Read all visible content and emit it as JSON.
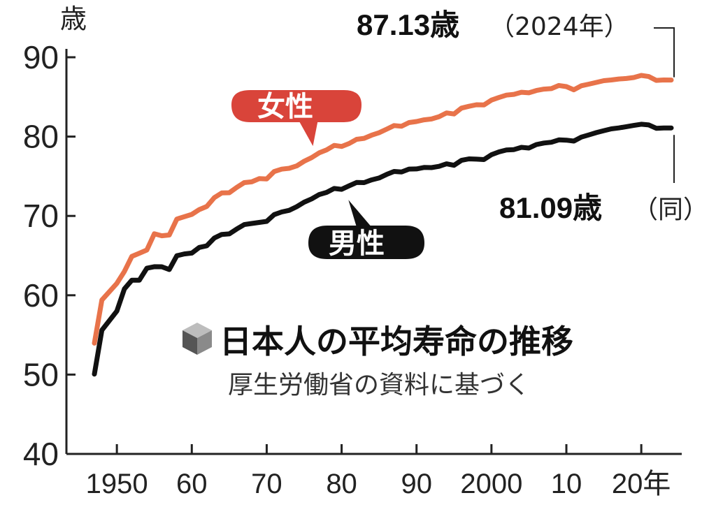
{
  "title": "日本人の平均寿命の推移",
  "subtitle": "厚生労働省の資料に基づく",
  "unit": "歳",
  "chart_data": {
    "type": "line",
    "ylim": [
      40,
      90
    ],
    "yticks": [
      "90",
      "80",
      "70",
      "60",
      "50",
      "40"
    ],
    "ytick_values": [
      90,
      80,
      70,
      60,
      50,
      40
    ],
    "xlim": [
      1945,
      2025
    ],
    "xticks": [
      {
        "year": 1950,
        "label": "1950"
      },
      {
        "year": 1960,
        "label": "60"
      },
      {
        "year": 1970,
        "label": "70"
      },
      {
        "year": 1980,
        "label": "80"
      },
      {
        "year": 1990,
        "label": "90"
      },
      {
        "year": 2000,
        "label": "2000"
      },
      {
        "year": 2010,
        "label": "10"
      },
      {
        "year": 2020,
        "label": "20年"
      }
    ],
    "series": [
      {
        "name": "女性",
        "color": "#e8734a",
        "x": [
          1947,
          1948,
          1950,
          1951,
          1952,
          1953,
          1954,
          1955,
          1956,
          1957,
          1958,
          1959,
          1960,
          1961,
          1962,
          1963,
          1964,
          1965,
          1966,
          1967,
          1968,
          1969,
          1970,
          1971,
          1972,
          1973,
          1974,
          1975,
          1976,
          1977,
          1978,
          1979,
          1980,
          1981,
          1982,
          1983,
          1984,
          1985,
          1986,
          1987,
          1988,
          1989,
          1990,
          1991,
          1992,
          1993,
          1994,
          1995,
          1996,
          1997,
          1998,
          1999,
          2000,
          2001,
          2002,
          2003,
          2004,
          2005,
          2006,
          2007,
          2008,
          2009,
          2010,
          2011,
          2012,
          2013,
          2014,
          2015,
          2016,
          2017,
          2018,
          2019,
          2020,
          2021,
          2022,
          2023,
          2024
        ],
        "y": [
          53.96,
          59.4,
          61.5,
          63.0,
          64.9,
          65.3,
          65.7,
          67.75,
          67.5,
          67.6,
          69.6,
          69.9,
          70.19,
          70.8,
          71.2,
          72.3,
          72.9,
          72.92,
          73.6,
          74.2,
          74.3,
          74.7,
          74.66,
          75.6,
          75.9,
          76.0,
          76.3,
          76.89,
          77.35,
          77.95,
          78.33,
          78.89,
          78.76,
          79.13,
          79.66,
          79.78,
          80.18,
          80.48,
          80.93,
          81.39,
          81.3,
          81.77,
          81.9,
          82.11,
          82.22,
          82.51,
          82.98,
          82.85,
          83.59,
          83.82,
          84.01,
          83.99,
          84.6,
          84.93,
          85.23,
          85.33,
          85.59,
          85.52,
          85.81,
          85.99,
          86.05,
          86.44,
          86.3,
          85.9,
          86.41,
          86.61,
          86.83,
          87.05,
          87.14,
          87.26,
          87.32,
          87.45,
          87.71,
          87.57,
          87.09,
          87.14,
          87.13
        ]
      },
      {
        "name": "男性",
        "color": "#111111",
        "x": [
          1947,
          1948,
          1950,
          1951,
          1952,
          1953,
          1954,
          1955,
          1956,
          1957,
          1958,
          1959,
          1960,
          1961,
          1962,
          1963,
          1964,
          1965,
          1966,
          1967,
          1968,
          1969,
          1970,
          1971,
          1972,
          1973,
          1974,
          1975,
          1976,
          1977,
          1978,
          1979,
          1980,
          1981,
          1982,
          1983,
          1984,
          1985,
          1986,
          1987,
          1988,
          1989,
          1990,
          1991,
          1992,
          1993,
          1994,
          1995,
          1996,
          1997,
          1998,
          1999,
          2000,
          2001,
          2002,
          2003,
          2004,
          2005,
          2006,
          2007,
          2008,
          2009,
          2010,
          2011,
          2012,
          2013,
          2014,
          2015,
          2016,
          2017,
          2018,
          2019,
          2020,
          2021,
          2022,
          2023,
          2024
        ],
        "y": [
          50.06,
          55.6,
          58.0,
          60.8,
          61.9,
          61.9,
          63.41,
          63.6,
          63.59,
          63.24,
          64.98,
          65.21,
          65.32,
          66.03,
          66.23,
          67.21,
          67.67,
          67.74,
          68.35,
          68.91,
          69.05,
          69.18,
          69.31,
          70.17,
          70.5,
          70.7,
          71.16,
          71.73,
          72.15,
          72.69,
          72.97,
          73.46,
          73.35,
          73.79,
          74.22,
          74.2,
          74.54,
          74.78,
          75.23,
          75.61,
          75.54,
          75.91,
          75.92,
          76.11,
          76.09,
          76.25,
          76.57,
          76.38,
          77.01,
          77.19,
          77.16,
          77.1,
          77.72,
          78.07,
          78.32,
          78.36,
          78.64,
          78.56,
          79.0,
          79.19,
          79.29,
          79.59,
          79.55,
          79.44,
          79.94,
          80.21,
          80.5,
          80.75,
          80.98,
          81.09,
          81.25,
          81.41,
          81.56,
          81.47,
          81.05,
          81.09,
          81.09
        ]
      }
    ],
    "annotations": {
      "female_value": "87.13歳",
      "female_note": "（2024年）",
      "male_value": "81.09歳",
      "male_note": "（同）"
    }
  }
}
